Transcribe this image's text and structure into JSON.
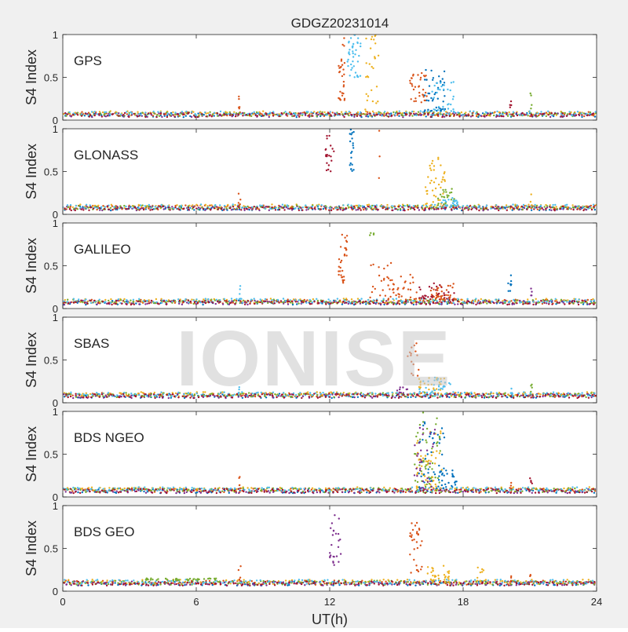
{
  "figure_title": "GDGZ20231014",
  "watermark": "IONISE",
  "chart_data": [
    {
      "type": "scatter",
      "panel_label": "GPS",
      "ylabel": "S4 Index",
      "xlabel": "",
      "xlim": [
        0,
        24
      ],
      "ylim": [
        0,
        1
      ],
      "x_ticks": [
        0,
        6,
        12,
        18,
        24
      ],
      "y_ticks": [
        0,
        0.5,
        1
      ],
      "y_tick_labels": [
        "0",
        "0.5",
        "1"
      ],
      "baseline": 0.07,
      "bursts": [
        {
          "x_range": [
            12.4,
            12.7
          ],
          "y_range": [
            0.2,
            1.0
          ],
          "color": "#D95319",
          "n": 30
        },
        {
          "x_range": [
            12.8,
            13.4
          ],
          "y_range": [
            0.5,
            1.0
          ],
          "color": "#4DBEEE",
          "n": 40
        },
        {
          "x_range": [
            13.6,
            14.2
          ],
          "y_range": [
            0.1,
            1.0
          ],
          "color": "#EDB120",
          "n": 30
        },
        {
          "x_range": [
            15.6,
            16.4
          ],
          "y_range": [
            0.2,
            0.55
          ],
          "color": "#D95319",
          "n": 35
        },
        {
          "x_range": [
            16.2,
            17.2
          ],
          "y_range": [
            0.1,
            0.6
          ],
          "color": "#0072BD",
          "n": 45
        },
        {
          "x_range": [
            16.6,
            17.6
          ],
          "y_range": [
            0.1,
            0.45
          ],
          "color": "#4DBEEE",
          "n": 30
        },
        {
          "x_range": [
            7.9,
            8.0
          ],
          "y_range": [
            0.1,
            0.28
          ],
          "color": "#D95319",
          "n": 5
        },
        {
          "x_range": [
            20.1,
            20.2
          ],
          "y_range": [
            0.1,
            0.22
          ],
          "color": "#A2142F",
          "n": 4
        },
        {
          "x_range": [
            21.0,
            21.1
          ],
          "y_range": [
            0.1,
            0.32
          ],
          "color": "#77AC30",
          "n": 4
        }
      ]
    },
    {
      "type": "scatter",
      "panel_label": "GLONASS",
      "ylabel": "S4 Index",
      "xlabel": "",
      "xlim": [
        0,
        24
      ],
      "ylim": [
        0,
        1
      ],
      "x_ticks": [
        0,
        6,
        12,
        18,
        24
      ],
      "y_ticks": [
        0,
        0.5,
        1
      ],
      "y_tick_labels": [
        "0",
        "0.5",
        "1"
      ],
      "baseline": 0.08,
      "bursts": [
        {
          "x_range": [
            11.8,
            12.2
          ],
          "y_range": [
            0.5,
            1.0
          ],
          "color": "#A2142F",
          "n": 20
        },
        {
          "x_range": [
            12.9,
            13.1
          ],
          "y_range": [
            0.5,
            1.0
          ],
          "color": "#0072BD",
          "n": 20
        },
        {
          "x_range": [
            14.2,
            14.3
          ],
          "y_range": [
            0.3,
            1.0
          ],
          "color": "#D95319",
          "n": 3
        },
        {
          "x_range": [
            16.3,
            17.2
          ],
          "y_range": [
            0.1,
            0.7
          ],
          "color": "#EDB120",
          "n": 40
        },
        {
          "x_range": [
            16.8,
            17.6
          ],
          "y_range": [
            0.1,
            0.3
          ],
          "color": "#77AC30",
          "n": 25
        },
        {
          "x_range": [
            17.0,
            17.8
          ],
          "y_range": [
            0.1,
            0.2
          ],
          "color": "#4DBEEE",
          "n": 20
        },
        {
          "x_range": [
            7.9,
            8.0
          ],
          "y_range": [
            0.1,
            0.27
          ],
          "color": "#D95319",
          "n": 5
        },
        {
          "x_range": [
            21.0,
            21.1
          ],
          "y_range": [
            0.1,
            0.25
          ],
          "color": "#EDB120",
          "n": 4
        }
      ]
    },
    {
      "type": "scatter",
      "panel_label": "GALILEO",
      "ylabel": "S4 Index",
      "xlabel": "",
      "xlim": [
        0,
        24
      ],
      "ylim": [
        0,
        1
      ],
      "x_ticks": [
        0,
        6,
        12,
        18,
        24
      ],
      "y_ticks": [
        0,
        0.5,
        1
      ],
      "y_tick_labels": [
        "0",
        "0.5",
        "1"
      ],
      "baseline": 0.08,
      "bursts": [
        {
          "x_range": [
            12.4,
            12.8
          ],
          "y_range": [
            0.3,
            1.0
          ],
          "color": "#D95319",
          "n": 30
        },
        {
          "x_range": [
            13.8,
            14.0
          ],
          "y_range": [
            0.85,
            0.95
          ],
          "color": "#77AC30",
          "n": 4
        },
        {
          "x_range": [
            13.8,
            14.8
          ],
          "y_range": [
            0.1,
            0.55
          ],
          "color": "#D95319",
          "n": 25
        },
        {
          "x_range": [
            14.8,
            16.0
          ],
          "y_range": [
            0.1,
            0.4
          ],
          "color": "#D95319",
          "n": 30
        },
        {
          "x_range": [
            16.0,
            17.6
          ],
          "y_range": [
            0.1,
            0.3
          ],
          "color": "#A2142F",
          "n": 35
        },
        {
          "x_range": [
            16.5,
            17.8
          ],
          "y_range": [
            0.1,
            0.3
          ],
          "color": "#D95319",
          "n": 35
        },
        {
          "x_range": [
            19.9,
            20.2
          ],
          "y_range": [
            0.15,
            0.4
          ],
          "color": "#0072BD",
          "n": 8
        },
        {
          "x_range": [
            21.0,
            21.1
          ],
          "y_range": [
            0.15,
            0.3
          ],
          "color": "#7E2F8E",
          "n": 4
        },
        {
          "x_range": [
            7.9,
            8.0
          ],
          "y_range": [
            0.1,
            0.27
          ],
          "color": "#4DBEEE",
          "n": 5
        }
      ]
    },
    {
      "type": "scatter",
      "panel_label": "SBAS",
      "ylabel": "S4 Index",
      "xlabel": "",
      "xlim": [
        0,
        24
      ],
      "ylim": [
        0,
        1
      ],
      "x_ticks": [
        0,
        6,
        12,
        18,
        24
      ],
      "y_ticks": [
        0,
        0.5,
        1
      ],
      "y_tick_labels": [
        "0",
        "0.5",
        "1"
      ],
      "baseline": 0.09,
      "bursts": [
        {
          "x_range": [
            15.5,
            16.0
          ],
          "y_range": [
            0.3,
            0.7
          ],
          "color": "#D95319",
          "n": 15
        },
        {
          "x_range": [
            16.0,
            17.2
          ],
          "y_range": [
            0.15,
            0.3
          ],
          "color": "#EDB120",
          "n": 25
        },
        {
          "x_range": [
            15.0,
            15.5
          ],
          "y_range": [
            0.1,
            0.2
          ],
          "color": "#7E2F8E",
          "n": 10
        },
        {
          "x_range": [
            16.0,
            17.5
          ],
          "y_range": [
            0.1,
            0.3
          ],
          "color": "#4DBEEE",
          "n": 30
        },
        {
          "x_range": [
            20.1,
            20.2
          ],
          "y_range": [
            0.1,
            0.23
          ],
          "color": "#4DBEEE",
          "n": 4
        },
        {
          "x_range": [
            21.0,
            21.1
          ],
          "y_range": [
            0.1,
            0.25
          ],
          "color": "#77AC30",
          "n": 4
        },
        {
          "x_range": [
            7.9,
            8.0
          ],
          "y_range": [
            0.1,
            0.2
          ],
          "color": "#4DBEEE",
          "n": 3
        }
      ]
    },
    {
      "type": "scatter",
      "panel_label": "BDS NGEO",
      "ylabel": "S4 Index",
      "xlabel": "",
      "xlim": [
        0,
        24
      ],
      "ylim": [
        0,
        1
      ],
      "x_ticks": [
        0,
        6,
        12,
        18,
        24
      ],
      "y_ticks": [
        0,
        0.5,
        1
      ],
      "y_tick_labels": [
        "0",
        "0.5",
        "1"
      ],
      "baseline": 0.08,
      "bursts": [
        {
          "x_range": [
            15.8,
            17.0
          ],
          "y_range": [
            0.1,
            1.0
          ],
          "color": "#77AC30",
          "n": 50
        },
        {
          "x_range": [
            15.9,
            17.1
          ],
          "y_range": [
            0.1,
            0.8
          ],
          "color": "#EDB120",
          "n": 45
        },
        {
          "x_range": [
            16.0,
            17.2
          ],
          "y_range": [
            0.1,
            0.9
          ],
          "color": "#0072BD",
          "n": 45
        },
        {
          "x_range": [
            15.8,
            16.8
          ],
          "y_range": [
            0.1,
            0.85
          ],
          "color": "#7E2F8E",
          "n": 30
        },
        {
          "x_range": [
            16.8,
            17.8
          ],
          "y_range": [
            0.1,
            0.35
          ],
          "color": "#0072BD",
          "n": 25
        },
        {
          "x_range": [
            7.9,
            8.0
          ],
          "y_range": [
            0.1,
            0.32
          ],
          "color": "#D95319",
          "n": 5
        },
        {
          "x_range": [
            20.1,
            20.2
          ],
          "y_range": [
            0.1,
            0.25
          ],
          "color": "#D95319",
          "n": 4
        },
        {
          "x_range": [
            21.0,
            21.1
          ],
          "y_range": [
            0.1,
            0.25
          ],
          "color": "#A2142F",
          "n": 4
        }
      ]
    },
    {
      "type": "scatter",
      "panel_label": "BDS GEO",
      "ylabel": "S4 Index",
      "xlabel": "UT(h)",
      "xlim": [
        0,
        24
      ],
      "ylim": [
        0,
        1
      ],
      "x_ticks": [
        0,
        6,
        12,
        18,
        24
      ],
      "y_ticks": [
        0,
        0.5,
        1
      ],
      "y_tick_labels": [
        "0",
        "0.5",
        "1"
      ],
      "baseline": 0.1,
      "bursts": [
        {
          "x_range": [
            12.0,
            12.5
          ],
          "y_range": [
            0.3,
            0.9
          ],
          "color": "#7E2F8E",
          "n": 25
        },
        {
          "x_range": [
            15.6,
            16.2
          ],
          "y_range": [
            0.2,
            0.8
          ],
          "color": "#D95319",
          "n": 30
        },
        {
          "x_range": [
            16.4,
            17.4
          ],
          "y_range": [
            0.1,
            0.3
          ],
          "color": "#EDB120",
          "n": 30
        },
        {
          "x_range": [
            18.6,
            19.0
          ],
          "y_range": [
            0.1,
            0.28
          ],
          "color": "#EDB120",
          "n": 10
        },
        {
          "x_range": [
            7.9,
            8.0
          ],
          "y_range": [
            0.1,
            0.32
          ],
          "color": "#D95319",
          "n": 5
        },
        {
          "x_range": [
            20.1,
            20.2
          ],
          "y_range": [
            0.1,
            0.23
          ],
          "color": "#D95319",
          "n": 4
        },
        {
          "x_range": [
            21.0,
            21.1
          ],
          "y_range": [
            0.1,
            0.25
          ],
          "color": "#D95319",
          "n": 4
        },
        {
          "x_range": [
            3.7,
            6.9
          ],
          "y_range": [
            0.13,
            0.15
          ],
          "color": "#77AC30",
          "n": 40
        }
      ]
    }
  ],
  "baseline_colors": [
    "#0072BD",
    "#D95319",
    "#EDB120",
    "#7E2F8E",
    "#77AC30",
    "#4DBEEE",
    "#A2142F"
  ]
}
